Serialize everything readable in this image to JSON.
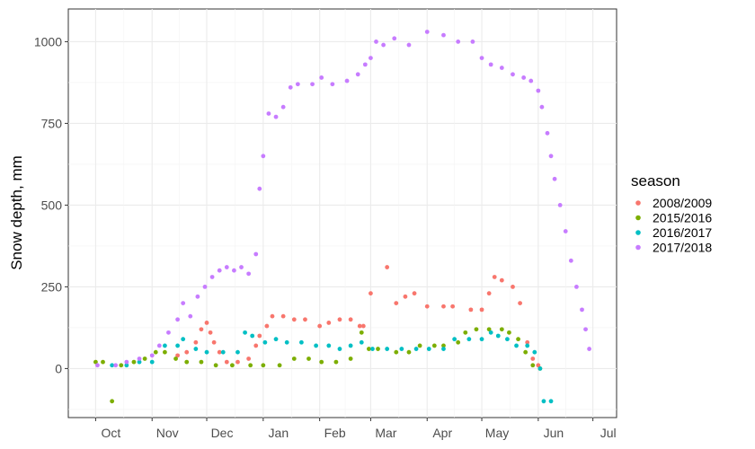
{
  "chart_data": {
    "type": "scatter",
    "title": "",
    "xlabel": "",
    "ylabel": "Snow depth, mm",
    "legend_title": "season",
    "legend_position": "right",
    "grid": true,
    "ylim": [
      -150,
      1100
    ],
    "yticks": [
      0,
      250,
      500,
      750,
      1000
    ],
    "yticklabels": [
      "0",
      "250",
      "500",
      "750",
      "1000"
    ],
    "xlim": [
      "Sep 16",
      "Jul 14"
    ],
    "xticks": [
      "Oct",
      "Nov",
      "Dec",
      "Jan",
      "Feb",
      "Mar",
      "Apr",
      "May",
      "Jun",
      "Jul"
    ],
    "series": [
      {
        "name": "2008/2009",
        "color": "#F8766D",
        "points": [
          [
            "Nov 15",
            40
          ],
          [
            "Nov 20",
            50
          ],
          [
            "Nov 25",
            80
          ],
          [
            "Nov 28",
            120
          ],
          [
            "Dec 1",
            140
          ],
          [
            "Dec 3",
            110
          ],
          [
            "Dec 5",
            80
          ],
          [
            "Dec 8",
            50
          ],
          [
            "Dec 12",
            20
          ],
          [
            "Dec 18",
            20
          ],
          [
            "Dec 24",
            30
          ],
          [
            "Dec 28",
            70
          ],
          [
            "Dec 30",
            100
          ],
          [
            "Jan 3",
            130
          ],
          [
            "Jan 6",
            160
          ],
          [
            "Jan 12",
            160
          ],
          [
            "Jan 18",
            150
          ],
          [
            "Jan 24",
            150
          ],
          [
            "Feb 1",
            130
          ],
          [
            "Feb 6",
            140
          ],
          [
            "Feb 12",
            150
          ],
          [
            "Feb 18",
            150
          ],
          [
            "Feb 23",
            130
          ],
          [
            "Feb 25",
            130
          ],
          [
            "Mar 1",
            230
          ],
          [
            "Mar 10",
            310
          ],
          [
            "Mar 15",
            200
          ],
          [
            "Mar 20",
            220
          ],
          [
            "Mar 25",
            230
          ],
          [
            "Apr 1",
            190
          ],
          [
            "Apr 10",
            190
          ],
          [
            "Apr 15",
            190
          ],
          [
            "Apr 25",
            180
          ],
          [
            "May 1",
            180
          ],
          [
            "May 5",
            230
          ],
          [
            "May 8",
            280
          ],
          [
            "May 12",
            270
          ],
          [
            "May 18",
            250
          ],
          [
            "May 22",
            200
          ],
          [
            "May 26",
            80
          ],
          [
            "May 29",
            30
          ],
          [
            "Jun 1",
            10
          ]
        ]
      },
      {
        "name": "2015/2016",
        "color": "#7CAE00",
        "points": [
          [
            "Oct 1",
            20
          ],
          [
            "Oct 5",
            20
          ],
          [
            "Oct 10",
            -100
          ],
          [
            "Oct 15",
            10
          ],
          [
            "Oct 22",
            20
          ],
          [
            "Oct 28",
            30
          ],
          [
            "Nov 3",
            50
          ],
          [
            "Nov 8",
            50
          ],
          [
            "Nov 14",
            30
          ],
          [
            "Nov 20",
            20
          ],
          [
            "Nov 28",
            20
          ],
          [
            "Dec 6",
            10
          ],
          [
            "Dec 15",
            10
          ],
          [
            "Dec 25",
            10
          ],
          [
            "Jan 1",
            10
          ],
          [
            "Jan 10",
            10
          ],
          [
            "Jan 18",
            30
          ],
          [
            "Jan 26",
            30
          ],
          [
            "Feb 2",
            20
          ],
          [
            "Feb 10",
            20
          ],
          [
            "Feb 18",
            30
          ],
          [
            "Feb 24",
            110
          ],
          [
            "Feb 28",
            60
          ],
          [
            "Mar 5",
            60
          ],
          [
            "Mar 15",
            50
          ],
          [
            "Mar 22",
            50
          ],
          [
            "Mar 28",
            70
          ],
          [
            "Apr 5",
            70
          ],
          [
            "Apr 10",
            70
          ],
          [
            "Apr 18",
            80
          ],
          [
            "Apr 22",
            110
          ],
          [
            "Apr 28",
            120
          ],
          [
            "May 5",
            120
          ],
          [
            "May 12",
            120
          ],
          [
            "May 16",
            110
          ],
          [
            "May 21",
            90
          ],
          [
            "May 25",
            50
          ],
          [
            "May 29",
            10
          ],
          [
            "Jun 2",
            0
          ]
        ]
      },
      {
        "name": "2016/2017",
        "color": "#00BFC4",
        "points": [
          [
            "Oct 10",
            10
          ],
          [
            "Oct 18",
            10
          ],
          [
            "Oct 25",
            20
          ],
          [
            "Nov 1",
            20
          ],
          [
            "Nov 8",
            70
          ],
          [
            "Nov 15",
            70
          ],
          [
            "Nov 18",
            90
          ],
          [
            "Nov 25",
            60
          ],
          [
            "Dec 1",
            50
          ],
          [
            "Dec 10",
            50
          ],
          [
            "Dec 18",
            50
          ],
          [
            "Dec 22",
            110
          ],
          [
            "Dec 26",
            100
          ],
          [
            "Jan 2",
            80
          ],
          [
            "Jan 8",
            90
          ],
          [
            "Jan 14",
            80
          ],
          [
            "Jan 22",
            80
          ],
          [
            "Jan 30",
            70
          ],
          [
            "Feb 6",
            70
          ],
          [
            "Feb 12",
            60
          ],
          [
            "Feb 18",
            70
          ],
          [
            "Feb 24",
            80
          ],
          [
            "Mar 2",
            60
          ],
          [
            "Mar 10",
            60
          ],
          [
            "Mar 18",
            60
          ],
          [
            "Mar 26",
            60
          ],
          [
            "Apr 2",
            60
          ],
          [
            "Apr 10",
            60
          ],
          [
            "Apr 16",
            90
          ],
          [
            "Apr 24",
            90
          ],
          [
            "May 1",
            90
          ],
          [
            "May 6",
            110
          ],
          [
            "May 10",
            100
          ],
          [
            "May 15",
            90
          ],
          [
            "May 20",
            70
          ],
          [
            "May 26",
            70
          ],
          [
            "May 30",
            50
          ],
          [
            "Jun 2",
            0
          ],
          [
            "Jun 4",
            -100
          ],
          [
            "Jun 8",
            -100
          ]
        ]
      },
      {
        "name": "2017/2018",
        "color": "#C77CFF",
        "points": [
          [
            "Oct 2",
            10
          ],
          [
            "Oct 12",
            10
          ],
          [
            "Oct 18",
            20
          ],
          [
            "Oct 25",
            30
          ],
          [
            "Nov 1",
            40
          ],
          [
            "Nov 5",
            70
          ],
          [
            "Nov 10",
            110
          ],
          [
            "Nov 15",
            150
          ],
          [
            "Nov 18",
            200
          ],
          [
            "Nov 22",
            160
          ],
          [
            "Nov 26",
            220
          ],
          [
            "Nov 30",
            250
          ],
          [
            "Dec 4",
            280
          ],
          [
            "Dec 8",
            300
          ],
          [
            "Dec 12",
            310
          ],
          [
            "Dec 16",
            300
          ],
          [
            "Dec 20",
            310
          ],
          [
            "Dec 24",
            290
          ],
          [
            "Dec 28",
            350
          ],
          [
            "Dec 30",
            550
          ],
          [
            "Jan 1",
            650
          ],
          [
            "Jan 4",
            780
          ],
          [
            "Jan 8",
            770
          ],
          [
            "Jan 12",
            800
          ],
          [
            "Jan 16",
            860
          ],
          [
            "Jan 20",
            870
          ],
          [
            "Jan 28",
            870
          ],
          [
            "Feb 2",
            890
          ],
          [
            "Feb 8",
            870
          ],
          [
            "Feb 16",
            880
          ],
          [
            "Feb 22",
            900
          ],
          [
            "Feb 26",
            930
          ],
          [
            "Mar 1",
            950
          ],
          [
            "Mar 4",
            1000
          ],
          [
            "Mar 8",
            990
          ],
          [
            "Mar 14",
            1010
          ],
          [
            "Mar 22",
            990
          ],
          [
            "Apr 1",
            1030
          ],
          [
            "Apr 10",
            1020
          ],
          [
            "Apr 18",
            1000
          ],
          [
            "Apr 26",
            1000
          ],
          [
            "May 1",
            950
          ],
          [
            "May 6",
            930
          ],
          [
            "May 12",
            920
          ],
          [
            "May 18",
            900
          ],
          [
            "May 24",
            890
          ],
          [
            "May 28",
            880
          ],
          [
            "Jun 1",
            850
          ],
          [
            "Jun 3",
            800
          ],
          [
            "Jun 6",
            720
          ],
          [
            "Jun 8",
            650
          ],
          [
            "Jun 10",
            580
          ],
          [
            "Jun 13",
            500
          ],
          [
            "Jun 16",
            420
          ],
          [
            "Jun 19",
            330
          ],
          [
            "Jun 22",
            250
          ],
          [
            "Jun 25",
            180
          ],
          [
            "Jun 27",
            120
          ],
          [
            "Jun 29",
            60
          ]
        ]
      }
    ]
  }
}
